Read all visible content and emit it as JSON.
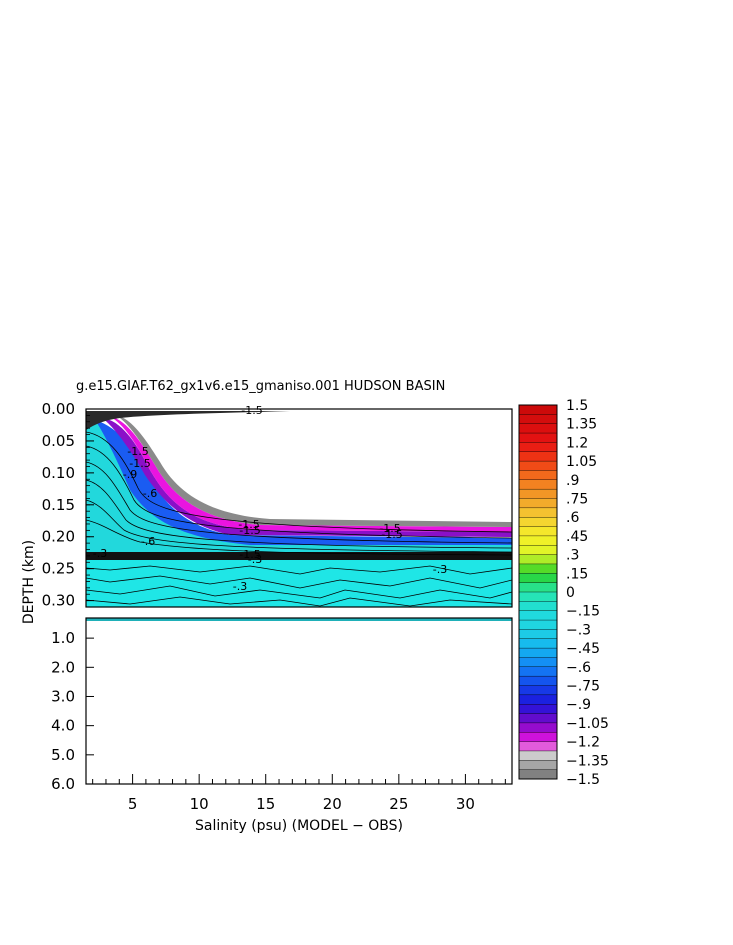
{
  "chart_data": {
    "type": "heatmap",
    "title": "g.e15.GIAF.T62_gx1v6.e15_gmaniso.001 HUDSON BASIN",
    "xlabel": "Salinity (psu) (MODEL − OBS)",
    "ylabel": "DEPTH (km)",
    "xlim": [
      1.5,
      33.5
    ],
    "x_ticks": [
      "5",
      "10",
      "15",
      "20",
      "25",
      "30"
    ],
    "y_ticks_upper": [
      "0.00",
      "0.05",
      "0.10",
      "0.15",
      "0.20",
      "0.25",
      "0.30"
    ],
    "y_ticks_lower": [
      "1.0",
      "2.0",
      "3.0",
      "4.0",
      "5.0",
      "6.0"
    ],
    "upper_panel_ylim": [
      0.0,
      0.31
    ],
    "lower_panel_ylim": [
      0.31,
      6.0
    ],
    "colorbar": {
      "min": -1.5,
      "max": 1.5,
      "labels": [
        "1.5",
        "1.35",
        "1.2",
        "1.05",
        ".9",
        ".75",
        ".6",
        ".45",
        ".3",
        ".15",
        "0",
        "−.15",
        "−.3",
        "−.45",
        "−.6",
        "−.75",
        "−.9",
        "−1.05",
        "−1.2",
        "−1.35",
        "−1.5"
      ]
    },
    "contour_labels": [
      "-1.5",
      "-1.5",
      "-1.5",
      "-1.5",
      "-1.5",
      "-1.5",
      "-1.5",
      "-1.5",
      "-.3",
      "-.3",
      "-.3",
      "-.3",
      "-.6",
      "-.6",
      "-.9"
    ]
  }
}
